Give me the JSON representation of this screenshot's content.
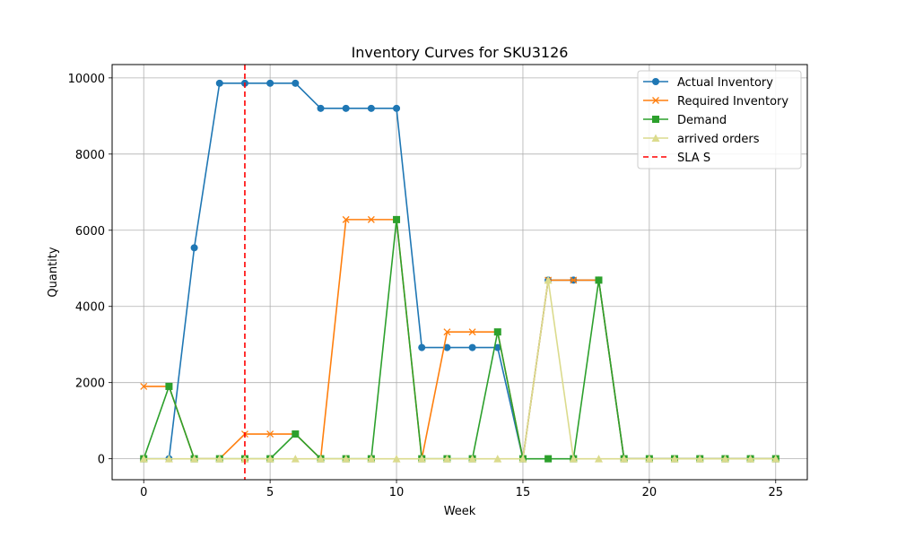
{
  "chart_data": {
    "type": "line",
    "title": "Inventory Curves for SKU3126",
    "xlabel": "Week",
    "ylabel": "Quantity",
    "xlim": [
      -1.25,
      26.25
    ],
    "ylim": [
      -550,
      10350
    ],
    "xticks": [
      0,
      5,
      10,
      15,
      20,
      25
    ],
    "yticks": [
      0,
      2000,
      4000,
      6000,
      8000,
      10000
    ],
    "grid": true,
    "legend_position": "top-right",
    "x": [
      0,
      1,
      2,
      3,
      4,
      5,
      6,
      7,
      8,
      9,
      10,
      11,
      12,
      13,
      14,
      15,
      16,
      17,
      18,
      19,
      20,
      21,
      22,
      23,
      24,
      25
    ],
    "series": [
      {
        "name": "Actual Inventory",
        "color": "#1f77b4",
        "marker": "circle",
        "values": [
          0,
          0,
          5540,
          9860,
          9860,
          9860,
          9860,
          9200,
          9200,
          9200,
          9200,
          2920,
          2920,
          2920,
          2920,
          0,
          4690,
          4690,
          4690,
          0,
          0,
          0,
          0,
          0,
          0,
          0
        ]
      },
      {
        "name": "Required Inventory",
        "color": "#ff7f0e",
        "marker": "x",
        "values": [
          1900,
          1900,
          0,
          0,
          650,
          650,
          650,
          0,
          6280,
          6280,
          6280,
          0,
          3330,
          3330,
          3330,
          0,
          4690,
          4690,
          4690,
          0,
          0,
          0,
          0,
          0,
          0,
          0
        ]
      },
      {
        "name": "Demand",
        "color": "#2ca02c",
        "marker": "square",
        "values": [
          0,
          1900,
          0,
          0,
          0,
          0,
          650,
          0,
          0,
          0,
          6280,
          0,
          0,
          0,
          3330,
          0,
          0,
          0,
          4690,
          0,
          0,
          0,
          0,
          0,
          0,
          0
        ]
      },
      {
        "name": "arrived orders",
        "color": "#dbdb8d",
        "marker": "triangle",
        "values": [
          0,
          0,
          0,
          0,
          0,
          0,
          0,
          0,
          0,
          0,
          0,
          0,
          0,
          0,
          0,
          0,
          4690,
          0,
          0,
          0,
          0,
          0,
          0,
          0,
          0,
          0
        ]
      }
    ],
    "vlines": [
      {
        "name": "SLA S",
        "x": 4,
        "color": "#ff0000",
        "style": "dashed"
      }
    ]
  }
}
